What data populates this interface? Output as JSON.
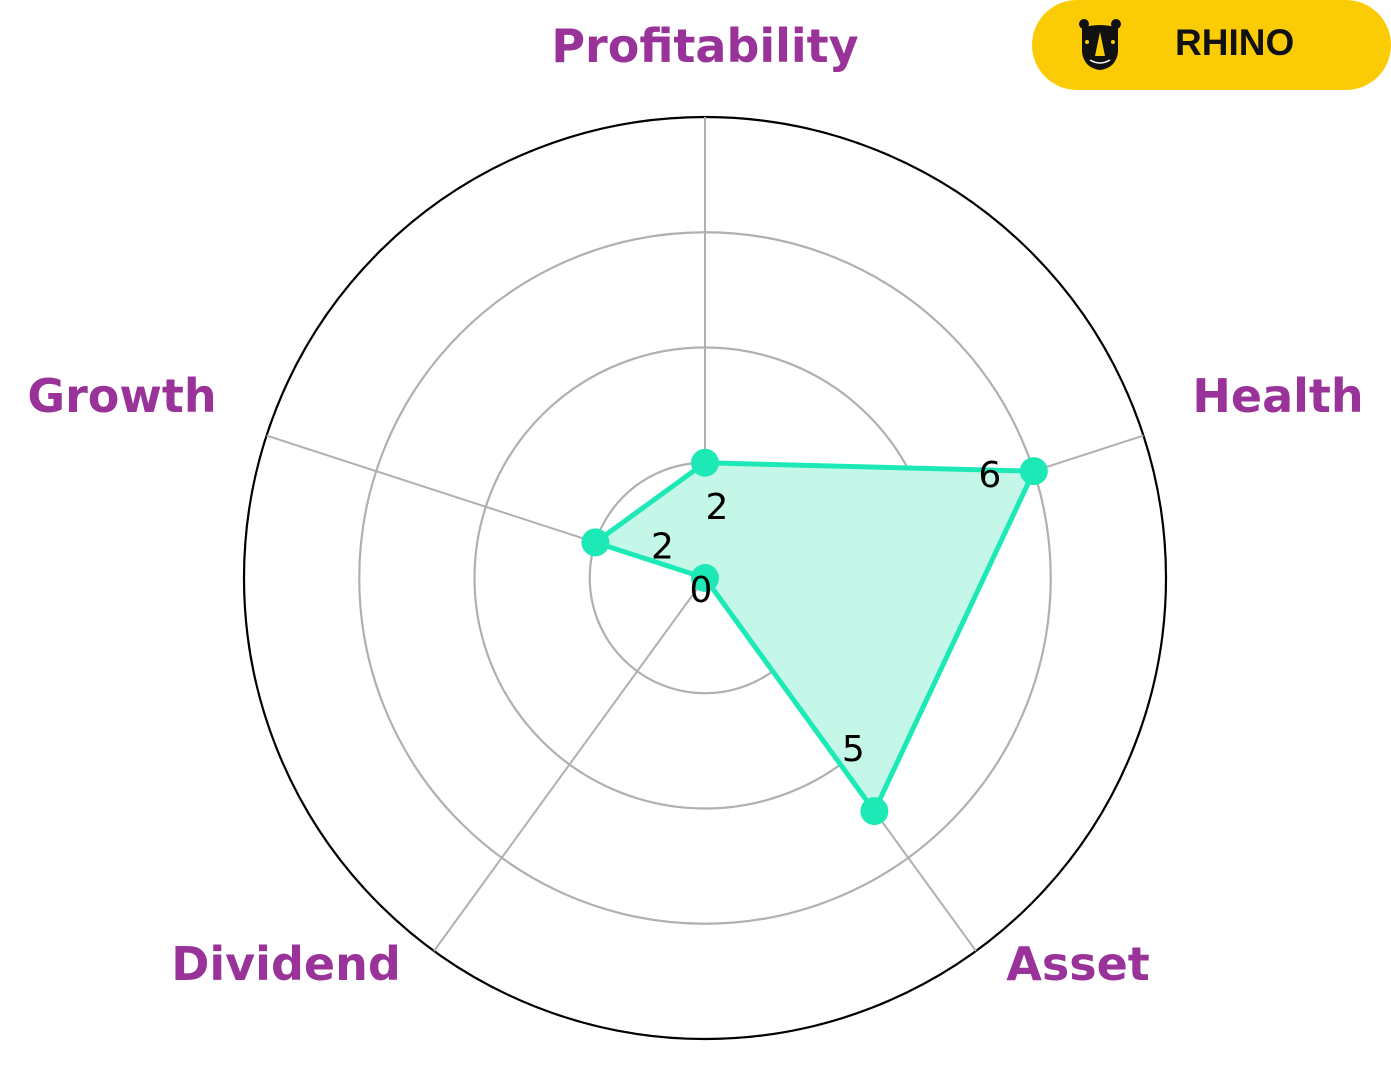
{
  "chart_data": {
    "type": "radar",
    "categories": [
      "Profitability",
      "Health",
      "Asset",
      "Dividend",
      "Growth"
    ],
    "values": [
      2,
      6,
      5,
      0,
      2
    ],
    "data_labels": [
      "2",
      "6",
      "5",
      "0",
      "2"
    ],
    "rlim": [
      0,
      8
    ],
    "rgrid": [
      2,
      4,
      6,
      8
    ],
    "grid": true,
    "colors": {
      "series": "#1de9b6",
      "fill": "#c5f7e9",
      "category_label": "#993399",
      "grid": "#b0b0b0",
      "outer": "#000000"
    }
  },
  "logo": {
    "text": "RHINO",
    "background": "#fbcc05"
  }
}
